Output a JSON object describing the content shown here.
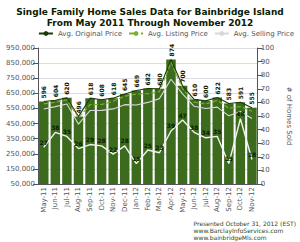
{
  "chart_data": {
    "type": "bar",
    "title": "Single Family Home Sales Data for Bainbridge Island",
    "subtitle": "From May 2011 Through November 2012",
    "annotations": [
      "Presented October 31, 2012 (EST)\nwww.BarclayInfoServices.com\nwww.bainbridgeMls.com"
    ],
    "y2label": "# of Homes Sold",
    "categories": [
      "May-11",
      "Jun-11",
      "Jul-11",
      "Aug-11",
      "Sep-11",
      "Oct-11",
      "Nov-11",
      "Dec-11",
      "Jan-12",
      "Feb-12",
      "Mar-12",
      "Apr-12",
      "May-12",
      "Jun-12",
      "Jul-12",
      "Aug-12",
      "Sep-12",
      "Oct-12",
      "Nov-12"
    ],
    "series": [
      {
        "type": "bar",
        "color": "#3d6b1e",
        "values": [
          596000,
          604000,
          620000,
          496000,
          618000,
          608000,
          618000,
          645000,
          669000,
          682000,
          680000,
          874500,
          700000,
          610000,
          600000,
          622000,
          583000,
          591000,
          555000
        ],
        "value_labels": [
          "596",
          "604",
          "620",
          "496",
          "618",
          "608",
          "618",
          "645",
          "669",
          "682",
          "680",
          "874",
          "700",
          "610",
          "600",
          "622",
          "583",
          "591",
          "555"
        ],
        "data_labels": true
      },
      {
        "name": "Avg. Original Price",
        "type": "line",
        "color": "#1a3a08",
        "line_style": "solid",
        "values": [
          596000,
          604000,
          620000,
          496000,
          618000,
          608000,
          618000,
          645000,
          669000,
          682000,
          680000,
          874500,
          700000,
          610000,
          600000,
          622000,
          583000,
          591000,
          555000
        ]
      },
      {
        "name": "Avg. Listing Price",
        "type": "line",
        "color": "#7ab030",
        "line_style": "dashed",
        "values": [
          580000,
          590000,
          607000,
          488000,
          575000,
          576000,
          597000,
          631000,
          645000,
          648000,
          660000,
          855000,
          680000,
          592000,
          580000,
          603000,
          551000,
          563000,
          532000
        ]
      },
      {
        "name": "Avg. Selling Price",
        "type": "line",
        "color": "#d8d8d8",
        "line_style": "solid",
        "values": [
          546000,
          562000,
          579000,
          446000,
          536000,
          537000,
          547000,
          575000,
          573000,
          590000,
          615000,
          743000,
          646000,
          564000,
          550000,
          559000,
          501000,
          530000,
          484000
        ]
      },
      {
        "type": "line",
        "color": "#f0f0f0",
        "axis": "y2",
        "line_style": "solid",
        "values": [
          27,
          38,
          35,
          26,
          29,
          28,
          22,
          28,
          15,
          25,
          23,
          39,
          47,
          38,
          34,
          35,
          15,
          48,
          18
        ],
        "data_labels": true
      }
    ],
    "ylim": [
      50000,
      950000
    ],
    "yticks": [
      {
        "value": 50000,
        "label": "50,000"
      },
      {
        "value": 150000,
        "label": "150,000"
      },
      {
        "value": 250000,
        "label": "250,000"
      },
      {
        "value": 350000,
        "label": "350,000"
      },
      {
        "value": 450000,
        "label": "450,000"
      },
      {
        "value": 550000,
        "label": "550,000"
      },
      {
        "value": 650000,
        "label": "650,000"
      },
      {
        "value": 750000,
        "label": "750,000"
      },
      {
        "value": 850000,
        "label": "850,000"
      },
      {
        "value": 950000,
        "label": "950,000"
      }
    ],
    "y2lim": [
      0,
      100
    ],
    "y2ticks": [
      0,
      10,
      20,
      30,
      40,
      50,
      60,
      70,
      80,
      90,
      100
    ],
    "grid": true,
    "legend": "upper right"
  }
}
